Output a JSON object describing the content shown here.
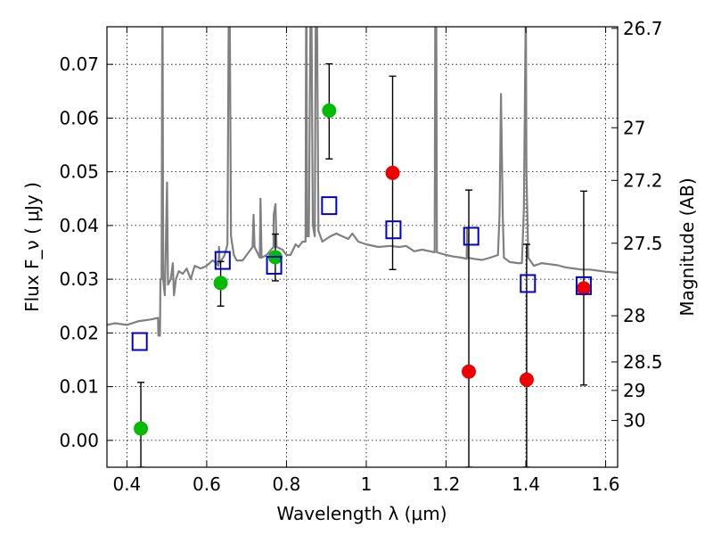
{
  "chart_data": {
    "type": "scatter",
    "xlabel": "Wavelength  λ (μm)",
    "ylabel": "Flux  F_ν  ( μJy )",
    "ylabel_right": "Magnitude (AB)",
    "xlim": [
      0.35,
      1.63
    ],
    "ylim": [
      -0.005,
      0.077
    ],
    "grid": true,
    "xticks": [
      0.4,
      0.6,
      0.8,
      1.0,
      1.2,
      1.4,
      1.6
    ],
    "xtick_labels": [
      "0.4",
      "0.6",
      "0.8",
      "1",
      "1.2",
      "1.4",
      "1.6"
    ],
    "yticks": [
      0.0,
      0.01,
      0.02,
      0.03,
      0.04,
      0.05,
      0.06,
      0.07
    ],
    "ytick_labels": [
      "0.00",
      "0.01",
      "0.02",
      "0.03",
      "0.04",
      "0.05",
      "0.06",
      "0.07"
    ],
    "right_ticks": [
      {
        "label": "26.7",
        "flux": 0.0767
      },
      {
        "label": "27",
        "flux": 0.0582
      },
      {
        "label": "27.2",
        "flux": 0.0484
      },
      {
        "label": "27.5",
        "flux": 0.0367
      },
      {
        "label": "28",
        "flux": 0.0232
      },
      {
        "label": "28.5",
        "flux": 0.0146
      },
      {
        "label": "29",
        "flux": 0.0093
      },
      {
        "label": "30",
        "flux": 0.0037
      }
    ],
    "model_spectrum": {
      "color": "#808080",
      "points": [
        [
          0.35,
          0.0215
        ],
        [
          0.37,
          0.0218
        ],
        [
          0.4,
          0.0215
        ],
        [
          0.43,
          0.0222
        ],
        [
          0.46,
          0.0225
        ],
        [
          0.478,
          0.0228
        ],
        [
          0.479,
          0.0195
        ],
        [
          0.483,
          0.0195
        ],
        [
          0.484,
          0.03
        ],
        [
          0.487,
          0.03
        ],
        [
          0.4888,
          0.082
        ],
        [
          0.4895,
          0.082
        ],
        [
          0.491,
          0.03
        ],
        [
          0.495,
          0.027
        ],
        [
          0.4985,
          0.04
        ],
        [
          0.5005,
          0.048
        ],
        [
          0.503,
          0.029
        ],
        [
          0.51,
          0.03
        ],
        [
          0.515,
          0.033
        ],
        [
          0.518,
          0.027
        ],
        [
          0.523,
          0.03
        ],
        [
          0.53,
          0.0315
        ],
        [
          0.54,
          0.031
        ],
        [
          0.55,
          0.032
        ],
        [
          0.56,
          0.03
        ],
        [
          0.57,
          0.0325
        ],
        [
          0.585,
          0.032
        ],
        [
          0.6,
          0.0325
        ],
        [
          0.615,
          0.0335
        ],
        [
          0.625,
          0.033
        ],
        [
          0.6295,
          0.0325
        ],
        [
          0.631,
          0.036
        ],
        [
          0.6325,
          0.033
        ],
        [
          0.645,
          0.0345
        ],
        [
          0.652,
          0.0365
        ],
        [
          0.6553,
          0.082
        ],
        [
          0.6575,
          0.082
        ],
        [
          0.661,
          0.038
        ],
        [
          0.668,
          0.0345
        ],
        [
          0.675,
          0.0335
        ],
        [
          0.69,
          0.0335
        ],
        [
          0.705,
          0.035
        ],
        [
          0.715,
          0.036
        ],
        [
          0.7175,
          0.042
        ],
        [
          0.72,
          0.036
        ],
        [
          0.733,
          0.034
        ],
        [
          0.735,
          0.045
        ],
        [
          0.7375,
          0.034
        ],
        [
          0.75,
          0.0345
        ],
        [
          0.7675,
          0.036
        ],
        [
          0.768,
          0.042
        ],
        [
          0.7725,
          0.044
        ],
        [
          0.775,
          0.036
        ],
        [
          0.79,
          0.0355
        ],
        [
          0.8,
          0.0345
        ],
        [
          0.81,
          0.0345
        ],
        [
          0.823,
          0.0365
        ],
        [
          0.83,
          0.036
        ],
        [
          0.84,
          0.037
        ],
        [
          0.8478,
          0.037
        ],
        [
          0.8492,
          0.082
        ],
        [
          0.8502,
          0.082
        ],
        [
          0.8515,
          0.038
        ],
        [
          0.856,
          0.038
        ],
        [
          0.8605,
          0.082
        ],
        [
          0.8625,
          0.082
        ],
        [
          0.866,
          0.04
        ],
        [
          0.871,
          0.038
        ],
        [
          0.8735,
          0.082
        ],
        [
          0.8762,
          0.082
        ],
        [
          0.88,
          0.039
        ],
        [
          0.89,
          0.037
        ],
        [
          0.91,
          0.038
        ],
        [
          0.925,
          0.0385
        ],
        [
          0.94,
          0.038
        ],
        [
          0.955,
          0.0375
        ],
        [
          0.965,
          0.0385
        ],
        [
          0.98,
          0.037
        ],
        [
          1.0,
          0.0365
        ],
        [
          1.03,
          0.036
        ],
        [
          1.06,
          0.0362
        ],
        [
          1.083,
          0.036
        ],
        [
          1.1,
          0.0362
        ],
        [
          1.12,
          0.0352
        ],
        [
          1.14,
          0.0355
        ],
        [
          1.16,
          0.0352
        ],
        [
          1.1715,
          0.035
        ],
        [
          1.173,
          0.082
        ],
        [
          1.1755,
          0.082
        ],
        [
          1.177,
          0.035
        ],
        [
          1.2,
          0.0345
        ],
        [
          1.22,
          0.0342
        ],
        [
          1.24,
          0.034
        ],
        [
          1.2515,
          0.0338
        ],
        [
          1.253,
          0.0395
        ],
        [
          1.2545,
          0.034
        ],
        [
          1.27,
          0.0338
        ],
        [
          1.29,
          0.0336
        ],
        [
          1.31,
          0.034
        ],
        [
          1.33,
          0.0345
        ],
        [
          1.334,
          0.042
        ],
        [
          1.3375,
          0.0645
        ],
        [
          1.342,
          0.042
        ],
        [
          1.345,
          0.034
        ],
        [
          1.36,
          0.0332
        ],
        [
          1.38,
          0.033
        ],
        [
          1.39,
          0.033
        ],
        [
          1.395,
          0.043
        ],
        [
          1.4,
          0.082
        ],
        [
          1.4015,
          0.05
        ],
        [
          1.406,
          0.034
        ],
        [
          1.42,
          0.0325
        ],
        [
          1.44,
          0.033
        ],
        [
          1.46,
          0.0328
        ],
        [
          1.48,
          0.0326
        ],
        [
          1.5,
          0.0322
        ],
        [
          1.52,
          0.032
        ],
        [
          1.54,
          0.0318
        ],
        [
          1.56,
          0.0318
        ],
        [
          1.58,
          0.0316
        ],
        [
          1.6,
          0.0314
        ],
        [
          1.63,
          0.0312
        ]
      ]
    },
    "series": [
      {
        "marker": "circle",
        "color": "#00bb00",
        "points": [
          {
            "x": 0.435,
            "y": 0.0022,
            "err_hi": 0.0108,
            "err_lo": -0.005
          },
          {
            "x": 0.635,
            "y": 0.0293,
            "err_hi": 0.0333,
            "err_lo": 0.025
          },
          {
            "x": 0.772,
            "y": 0.0341,
            "err_hi": 0.0384,
            "err_lo": 0.0297
          },
          {
            "x": 0.907,
            "y": 0.0614,
            "err_hi": 0.0701,
            "err_lo": 0.0524
          }
        ]
      },
      {
        "marker": "circle",
        "color": "#ee0000",
        "points": [
          {
            "x": 1.066,
            "y": 0.0498,
            "err_hi": 0.0678,
            "err_lo": 0.0318
          },
          {
            "x": 1.257,
            "y": 0.0128,
            "err_hi": 0.0466,
            "err_lo": -0.005
          },
          {
            "x": 1.402,
            "y": 0.0113,
            "err_hi": 0.0365,
            "err_lo": -0.005
          },
          {
            "x": 1.545,
            "y": 0.0283,
            "err_hi": 0.0464,
            "err_lo": 0.0103
          }
        ]
      },
      {
        "marker": "open-square",
        "color": "#0000cc",
        "points": [
          {
            "x": 0.432,
            "y": 0.0184
          },
          {
            "x": 0.64,
            "y": 0.0335
          },
          {
            "x": 0.769,
            "y": 0.0326
          },
          {
            "x": 0.907,
            "y": 0.0437
          },
          {
            "x": 1.068,
            "y": 0.0392
          },
          {
            "x": 1.263,
            "y": 0.038
          },
          {
            "x": 1.405,
            "y": 0.0292
          },
          {
            "x": 1.545,
            "y": 0.0288
          }
        ]
      }
    ]
  }
}
